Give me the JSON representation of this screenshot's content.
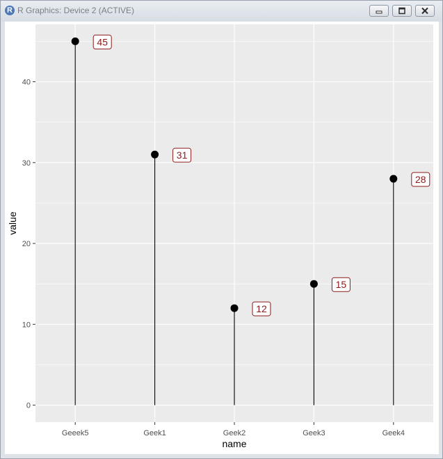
{
  "window": {
    "title": "R Graphics: Device 2 (ACTIVE)",
    "icon": "r-logo-icon",
    "icon_letter": "R",
    "buttons": [
      "minimize-icon",
      "maximize-icon",
      "close-icon"
    ]
  },
  "colors": {
    "panel_background": "#ebebeb",
    "grid": "#ffffff",
    "point": "#000000",
    "stem": "#000000",
    "label_text": "#8b1a1a",
    "label_border": "#8b1a1a"
  },
  "chart_data": {
    "type": "scatter",
    "style": "lollipop",
    "categories": [
      "Geeek5",
      "Geek1",
      "Geek2",
      "Geek3",
      "Geek4"
    ],
    "values": [
      45,
      31,
      12,
      15,
      28
    ],
    "data_labels": [
      "45",
      "31",
      "12",
      "15",
      "28"
    ],
    "xlabel": "name",
    "ylabel": "value",
    "ylim": [
      -2.1,
      47.1
    ],
    "yticks": [
      0,
      10,
      20,
      30,
      40
    ],
    "ytick_labels": [
      "0",
      "10",
      "20",
      "30",
      "40"
    ],
    "grid": true,
    "legend": "none"
  }
}
